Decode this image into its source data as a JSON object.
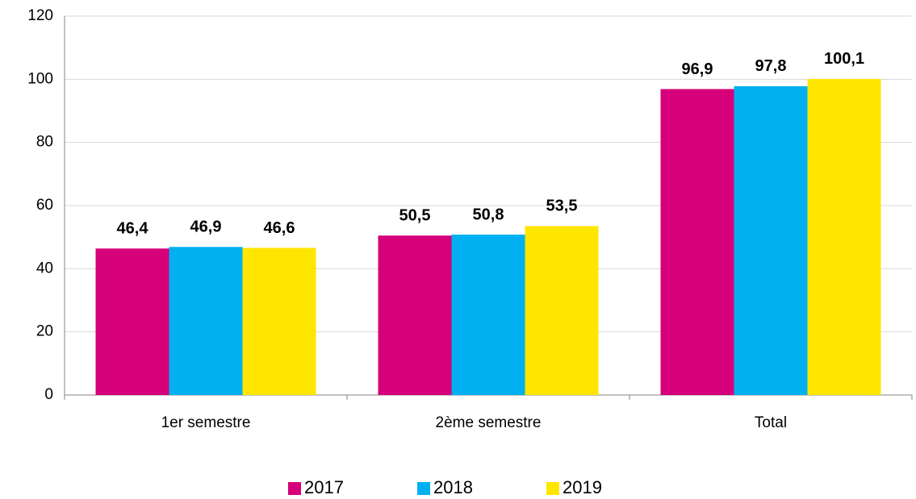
{
  "chart_data": {
    "type": "bar",
    "categories": [
      "1er semestre",
      "2ème semestre",
      "Total"
    ],
    "series": [
      {
        "name": "2017",
        "color": "#d6007a",
        "values": [
          46.4,
          50.5,
          96.9
        ],
        "value_labels": [
          "46,4",
          "50,5",
          "96,9"
        ]
      },
      {
        "name": "2018",
        "color": "#00b0f0",
        "values": [
          46.9,
          50.8,
          97.8
        ],
        "value_labels": [
          "46,9",
          "50,8",
          "97,8"
        ]
      },
      {
        "name": "2019",
        "color": "#ffe600",
        "values": [
          46.6,
          53.5,
          100.1
        ],
        "value_labels": [
          "46,6",
          "53,5",
          "100,1"
        ]
      }
    ],
    "ylim": [
      0,
      120
    ],
    "yticks": [
      0,
      20,
      40,
      60,
      80,
      100,
      120
    ],
    "grid": true,
    "legend": "bottom"
  }
}
